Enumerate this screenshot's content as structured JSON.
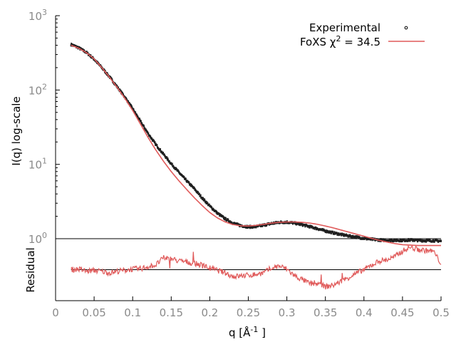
{
  "chart_data": [
    {
      "type": "scatter",
      "panel": "main",
      "title": "",
      "xlabel": "q [Å -1 ]",
      "ylabel": "I(q) log-scale",
      "xlim": [
        0,
        0.5
      ],
      "ylim": [
        1,
        1000
      ],
      "yscale": "log",
      "grid": false,
      "legend_placement": "top-right",
      "x_ticks": [
        {
          "value": 0,
          "label": "0"
        },
        {
          "value": 0.05,
          "label": "0.05"
        },
        {
          "value": 0.1,
          "label": "0.1"
        },
        {
          "value": 0.15,
          "label": "0.15"
        },
        {
          "value": 0.2,
          "label": "0.2"
        },
        {
          "value": 0.25,
          "label": "0.25"
        },
        {
          "value": 0.3,
          "label": "0.3"
        },
        {
          "value": 0.35,
          "label": "0.35"
        },
        {
          "value": 0.4,
          "label": "0.4"
        },
        {
          "value": 0.45,
          "label": "0.45"
        },
        {
          "value": 0.5,
          "label": "0.5"
        }
      ],
      "y_ticks": [
        {
          "value": 1,
          "base": "10",
          "exp": "0"
        },
        {
          "value": 10,
          "base": "10",
          "exp": "1"
        },
        {
          "value": 100,
          "base": "10",
          "exp": "2"
        },
        {
          "value": 1000,
          "base": "10",
          "exp": "3"
        }
      ],
      "series": [
        {
          "name": "Experimental",
          "style": "points",
          "color": "#1f1f1f",
          "x": [
            0.02,
            0.03,
            0.04,
            0.05,
            0.06,
            0.07,
            0.08,
            0.09,
            0.1,
            0.11,
            0.12,
            0.13,
            0.14,
            0.15,
            0.16,
            0.17,
            0.18,
            0.19,
            0.2,
            0.21,
            0.22,
            0.23,
            0.24,
            0.25,
            0.26,
            0.27,
            0.28,
            0.29,
            0.3,
            0.31,
            0.32,
            0.33,
            0.34,
            0.35,
            0.36,
            0.37,
            0.38,
            0.39,
            0.4,
            0.41,
            0.42,
            0.43,
            0.44,
            0.45,
            0.46,
            0.47,
            0.48,
            0.49,
            0.5
          ],
          "y": [
            410,
            370,
            320,
            260,
            200,
            150,
            110,
            80,
            56,
            38,
            26,
            18.5,
            13.7,
            10.2,
            7.8,
            6.0,
            4.7,
            3.55,
            2.75,
            2.2,
            1.85,
            1.62,
            1.5,
            1.44,
            1.45,
            1.52,
            1.6,
            1.66,
            1.67,
            1.62,
            1.54,
            1.45,
            1.36,
            1.27,
            1.2,
            1.14,
            1.09,
            1.05,
            1.01,
            0.98,
            0.96,
            0.95,
            0.95,
            0.95,
            0.96,
            0.95,
            0.94,
            0.94,
            0.93
          ]
        },
        {
          "name": "FoXS χ 2 = 34.5",
          "style": "line",
          "color": "#e05a5a",
          "x": [
            0.02,
            0.03,
            0.04,
            0.05,
            0.06,
            0.07,
            0.08,
            0.09,
            0.1,
            0.11,
            0.12,
            0.13,
            0.14,
            0.15,
            0.16,
            0.17,
            0.18,
            0.19,
            0.2,
            0.21,
            0.22,
            0.23,
            0.24,
            0.25,
            0.26,
            0.27,
            0.28,
            0.29,
            0.3,
            0.31,
            0.32,
            0.33,
            0.34,
            0.35,
            0.36,
            0.37,
            0.38,
            0.39,
            0.4,
            0.41,
            0.42,
            0.43,
            0.44,
            0.45,
            0.46,
            0.47,
            0.48,
            0.49,
            0.5
          ],
          "y": [
            400,
            365,
            318,
            262,
            200,
            148,
            108,
            77,
            53,
            35,
            23,
            15.6,
            11.0,
            8.0,
            6.0,
            4.6,
            3.55,
            2.8,
            2.25,
            1.9,
            1.68,
            1.55,
            1.49,
            1.48,
            1.51,
            1.56,
            1.62,
            1.66,
            1.68,
            1.68,
            1.66,
            1.62,
            1.56,
            1.48,
            1.4,
            1.31,
            1.23,
            1.15,
            1.08,
            1.01,
            0.95,
            0.9,
            0.86,
            0.83,
            0.82,
            0.81,
            0.81,
            0.81,
            0.81
          ]
        }
      ],
      "legend": {
        "experimental_label": "Experimental",
        "foxs_label_prefix": "FoXS χ",
        "foxs_label_sup": "2",
        "foxs_label_suffix": " = 34.5"
      },
      "xlabel_parts": {
        "main": "q [Å",
        "sup": "-1",
        "end": " ]"
      }
    },
    {
      "type": "line",
      "panel": "residual",
      "ylabel": "Residual",
      "xlim": [
        0,
        0.5
      ],
      "ylim": [
        -1,
        1
      ],
      "color": "#e05a5a",
      "baseline": 0,
      "x": [
        0.02,
        0.03,
        0.04,
        0.05,
        0.06,
        0.07,
        0.08,
        0.09,
        0.1,
        0.11,
        0.12,
        0.13,
        0.14,
        0.15,
        0.16,
        0.17,
        0.18,
        0.19,
        0.2,
        0.21,
        0.22,
        0.23,
        0.24,
        0.25,
        0.26,
        0.27,
        0.28,
        0.29,
        0.3,
        0.31,
        0.32,
        0.33,
        0.34,
        0.35,
        0.36,
        0.37,
        0.38,
        0.39,
        0.4,
        0.41,
        0.42,
        0.43,
        0.44,
        0.45,
        0.46,
        0.47,
        0.48,
        0.49,
        0.5
      ],
      "y": [
        0.0,
        0.02,
        -0.05,
        -0.02,
        -0.06,
        -0.1,
        -0.05,
        -0.02,
        0.02,
        0.03,
        0.1,
        0.15,
        0.38,
        0.35,
        0.28,
        0.25,
        0.2,
        0.15,
        0.05,
        -0.02,
        -0.1,
        -0.22,
        -0.2,
        -0.18,
        -0.15,
        -0.1,
        0.05,
        0.12,
        0.02,
        -0.2,
        -0.32,
        -0.45,
        -0.45,
        -0.55,
        -0.5,
        -0.38,
        -0.25,
        -0.12,
        0.0,
        0.15,
        0.28,
        0.32,
        0.42,
        0.6,
        0.72,
        0.65,
        0.62,
        0.6,
        0.2
      ]
    }
  ]
}
